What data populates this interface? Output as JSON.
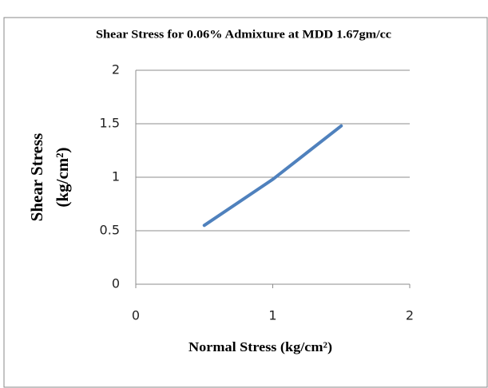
{
  "chart_data": {
    "type": "line",
    "title": "Shear Stress for 0.06% Admixture at MDD 1.67gm/cc",
    "x_label": "Normal Stress (kg/cm²)",
    "y_label": [
      "Shear Stress",
      "(kg/cm²)"
    ],
    "x": [
      0.5,
      1,
      1.5
    ],
    "series": [
      {
        "name": "Shear Stress",
        "color": "#4f81bd",
        "values": [
          0.55,
          0.98,
          1.48
        ]
      }
    ],
    "xlim": [
      0,
      2
    ],
    "xticks": [
      0,
      1,
      2
    ],
    "ylim": [
      0,
      2
    ],
    "yticks": [
      0,
      0.5,
      1,
      1.5,
      2
    ],
    "grid": true
  }
}
